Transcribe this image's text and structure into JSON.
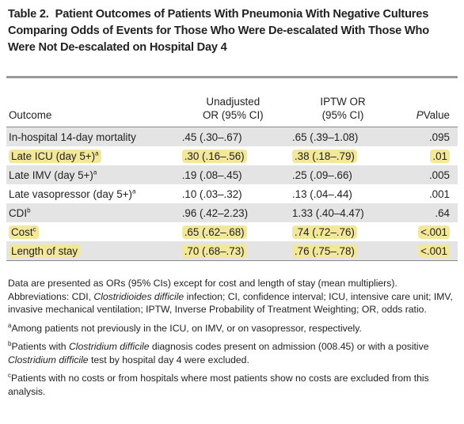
{
  "title": {
    "label": "Table 2.",
    "text": "Patient Outcomes of Patients With Pneumonia With Negative Cultures Comparing Odds of Events for Those Who Were De-escalated With Those Who Were Not De-escalated on Hospital Day 4"
  },
  "table": {
    "headers": [
      {
        "lines": [
          "Outcome"
        ]
      },
      {
        "lines": [
          "Unadjusted",
          "OR (95% CI)"
        ]
      },
      {
        "lines": [
          "IPTW OR",
          "(95% CI)"
        ]
      },
      {
        "lines": [
          "Value"
        ],
        "italic_prefix": "P"
      }
    ],
    "rows": [
      {
        "cells": [
          "In-hospital 14-day mortality",
          ".45 (.30–.67)",
          ".65 (.39–1.08)",
          ".095"
        ],
        "highlight": false
      },
      {
        "cells": [
          "Late ICU (day 5+)",
          ".30 (.16–.56)",
          ".38 (.18–.79)",
          ".01"
        ],
        "sup": "a",
        "highlight": true
      },
      {
        "cells": [
          "Late IMV (day 5+)",
          ".19 (.08–.45)",
          ".25 (.09–.66)",
          ".005"
        ],
        "sup": "a",
        "highlight": false
      },
      {
        "cells": [
          "Late vasopressor (day 5+)",
          ".10 (.03–.32)",
          ".13 (.04–.44)",
          ".001"
        ],
        "sup": "a",
        "highlight": false
      },
      {
        "cells": [
          "CDI",
          ".96 (.42–2.23)",
          "1.33 (.40–4.47)",
          ".64"
        ],
        "sup": "b",
        "highlight": false
      },
      {
        "cells": [
          "Cost",
          ".65 (.62–.68)",
          ".74 (.72–.76)",
          "<.001"
        ],
        "sup": "c",
        "highlight": true
      },
      {
        "cells": [
          "Length of stay",
          ".70 (.68–.73)",
          ".76 (.75–.78)",
          "<.001"
        ],
        "highlight": true
      }
    ]
  },
  "notes": [
    {
      "parts": [
        {
          "text": "Data are presented as ORs (95% CIs) except for cost and length of stay (mean multipliers). Abbreviations: CDI, "
        },
        {
          "text": "Clostridioides difficile",
          "italic": true
        },
        {
          "text": " infection; CI, confidence interval; ICU, intensive care unit; IMV, invasive mechanical ventilation; IPTW, Inverse Probability of Treatment Weighting; OR, odds ratio."
        }
      ]
    },
    {
      "mark": "a",
      "parts": [
        {
          "text": "Among patients not previously in the ICU, on IMV, or on vasopressor, respectively."
        }
      ]
    },
    {
      "mark": "b",
      "parts": [
        {
          "text": "Patients with "
        },
        {
          "text": "Clostridium difficile",
          "italic": true
        },
        {
          "text": " diagnosis codes present on admission (008.45) or with a positive "
        },
        {
          "text": "Clostridium difficile",
          "italic": true
        },
        {
          "text": " test by hospital day 4 were excluded."
        }
      ]
    },
    {
      "mark": "c",
      "parts": [
        {
          "text": "Patients with no costs or from hospitals where most patients show no costs are excluded from this analysis."
        }
      ]
    }
  ]
}
